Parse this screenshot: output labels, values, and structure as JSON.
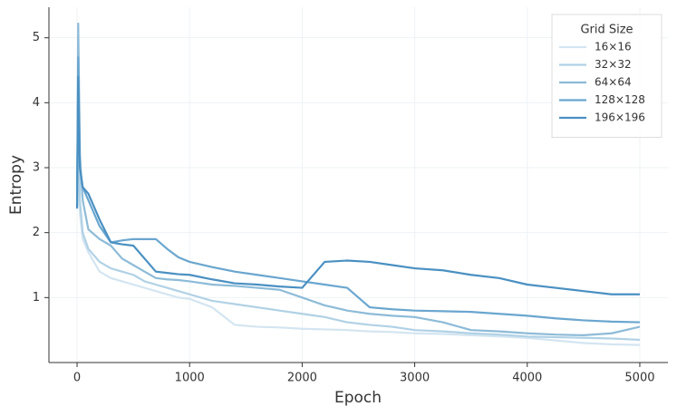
{
  "chart_data": {
    "type": "line",
    "x_label": "Epoch",
    "y_label": "Entropy",
    "x": [
      0,
      10,
      25,
      50,
      100,
      200,
      300,
      400,
      500,
      600,
      700,
      800,
      900,
      1000,
      1200,
      1400,
      1600,
      1800,
      2000,
      2200,
      2400,
      2600,
      2800,
      3000,
      3250,
      3500,
      3750,
      4000,
      4250,
      4500,
      4750,
      5000
    ],
    "series": [
      {
        "name": "16×16",
        "color": "#d3e5f1",
        "values": [
          2.4,
          4.0,
          2.3,
          1.9,
          1.7,
          1.4,
          1.3,
          1.25,
          1.2,
          1.15,
          1.1,
          1.05,
          1.0,
          0.98,
          0.85,
          0.58,
          0.55,
          0.54,
          0.52,
          0.51,
          0.5,
          0.48,
          0.47,
          0.45,
          0.44,
          0.42,
          0.4,
          0.38,
          0.34,
          0.3,
          0.28,
          0.27
        ]
      },
      {
        "name": "32×32",
        "color": "#b0d1e5",
        "values": [
          2.4,
          4.6,
          2.5,
          2.0,
          1.75,
          1.55,
          1.45,
          1.4,
          1.35,
          1.25,
          1.2,
          1.15,
          1.1,
          1.05,
          0.95,
          0.9,
          0.85,
          0.8,
          0.75,
          0.7,
          0.62,
          0.58,
          0.55,
          0.5,
          0.48,
          0.45,
          0.43,
          0.4,
          0.39,
          0.38,
          0.37,
          0.35
        ]
      },
      {
        "name": "64×64",
        "color": "#8dbbd8",
        "values": [
          2.4,
          5.22,
          3.2,
          2.5,
          2.05,
          1.9,
          1.8,
          1.6,
          1.5,
          1.4,
          1.3,
          1.28,
          1.27,
          1.25,
          1.2,
          1.18,
          1.15,
          1.12,
          1.0,
          0.88,
          0.8,
          0.75,
          0.72,
          0.7,
          0.62,
          0.5,
          0.48,
          0.45,
          0.43,
          0.42,
          0.45,
          0.55
        ]
      },
      {
        "name": "128×128",
        "color": "#6aa6cf",
        "values": [
          2.4,
          4.7,
          3.0,
          2.7,
          2.5,
          2.1,
          1.85,
          1.88,
          1.9,
          1.9,
          1.9,
          1.75,
          1.62,
          1.55,
          1.47,
          1.4,
          1.35,
          1.3,
          1.25,
          1.2,
          1.15,
          0.85,
          0.82,
          0.8,
          0.79,
          0.78,
          0.75,
          0.72,
          0.68,
          0.65,
          0.63,
          0.62
        ]
      },
      {
        "name": "196×196",
        "color": "#4a90c2",
        "values": [
          2.37,
          4.4,
          3.0,
          2.7,
          2.6,
          2.2,
          1.85,
          1.82,
          1.8,
          1.6,
          1.4,
          1.38,
          1.36,
          1.35,
          1.28,
          1.22,
          1.2,
          1.17,
          1.15,
          1.55,
          1.57,
          1.55,
          1.5,
          1.45,
          1.42,
          1.35,
          1.3,
          1.2,
          1.15,
          1.1,
          1.05,
          1.05
        ]
      }
    ],
    "xlim": [
      -250,
      5250
    ],
    "ylim": [
      0,
      5.47
    ],
    "xticks": [
      0,
      1000,
      2000,
      3000,
      4000,
      5000
    ],
    "yticks": [
      1,
      2,
      3,
      4,
      5
    ],
    "grid": true,
    "legend_title": "Grid Size",
    "legend_position": "upper-right"
  }
}
